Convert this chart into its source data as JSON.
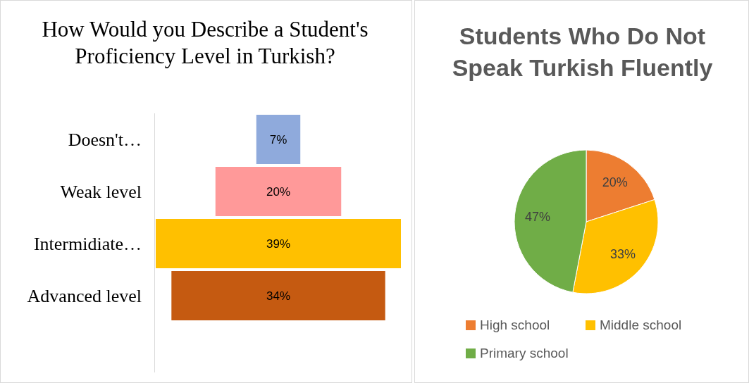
{
  "chart_data": [
    {
      "type": "other",
      "title": "How Would you Describe a Student's Proficiency Level in Turkish?",
      "categories": [
        "Doesn't…",
        "Weak level",
        "Intermidiate…",
        "Advanced level"
      ],
      "values": [
        7,
        20,
        39,
        34
      ],
      "colors": [
        "#8faadc",
        "#ff9999",
        "#ffc000",
        "#c55a11"
      ],
      "value_labels": [
        "7%",
        "20%",
        "39%",
        "34%"
      ]
    },
    {
      "type": "pie",
      "title": "Students Who Do Not Speak Turkish Fluently",
      "categories": [
        "High school",
        "Middle school",
        "Primary school"
      ],
      "values": [
        20,
        33,
        47
      ],
      "colors": [
        "#ed7d31",
        "#ffc000",
        "#70ad47"
      ],
      "value_labels": [
        "20%",
        "33%",
        "47%"
      ],
      "legend": "bottom"
    }
  ]
}
